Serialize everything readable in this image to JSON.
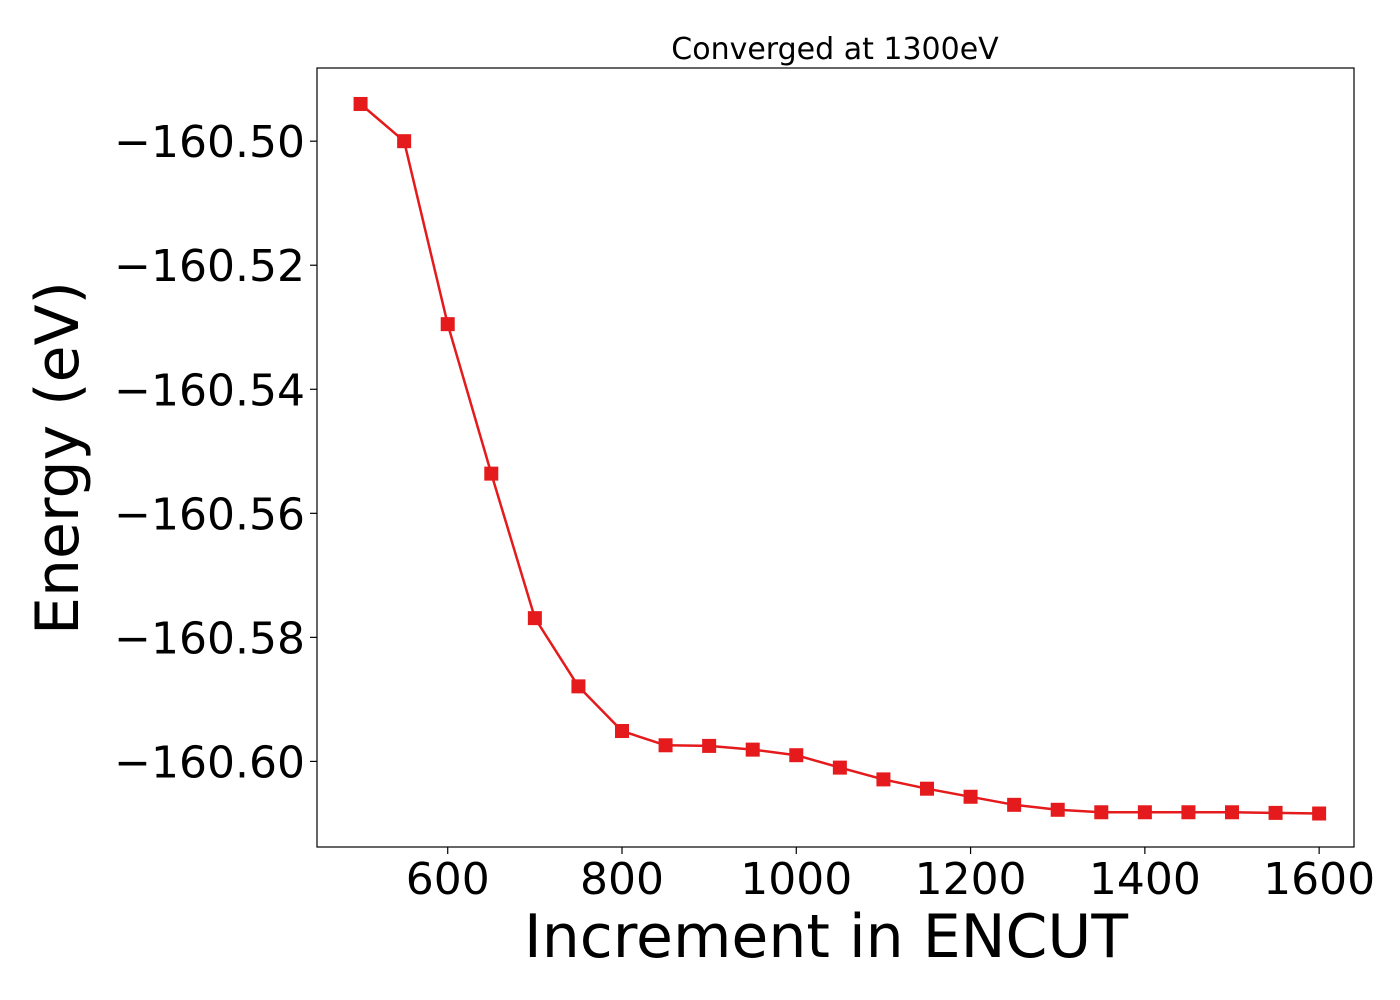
{
  "chart_data": {
    "type": "line",
    "title": "Converged at 1300eV",
    "xlabel": "Increment in ENCUT",
    "ylabel": "Energy (eV)",
    "xlim": [
      450,
      1640
    ],
    "ylim": [
      -160.6138,
      -160.4882
    ],
    "xticks": [
      600,
      800,
      1000,
      1200,
      1400,
      1600
    ],
    "xtick_labels": [
      "600",
      "800",
      "1000",
      "1200",
      "1400",
      "1600"
    ],
    "yticks": [
      -160.5,
      -160.52,
      -160.54,
      -160.56,
      -160.58,
      -160.6
    ],
    "ytick_labels": [
      "−160.50",
      "−160.52",
      "−160.54",
      "−160.56",
      "−160.58",
      "−160.60"
    ],
    "grid": false,
    "series": [
      {
        "color": "#e41a1c",
        "marker": "square",
        "x": [
          500,
          550,
          600,
          650,
          700,
          750,
          800,
          850,
          900,
          950,
          1000,
          1050,
          1100,
          1150,
          1200,
          1250,
          1300,
          1350,
          1400,
          1450,
          1500,
          1550,
          1600
        ],
        "y": [
          -160.494,
          -160.5,
          -160.5295,
          -160.5536,
          -160.5769,
          -160.5879,
          -160.5951,
          -160.5974,
          -160.5975,
          -160.5981,
          -160.599,
          -160.601,
          -160.6029,
          -160.6044,
          -160.6057,
          -160.607,
          -160.6078,
          -160.6082,
          -160.6082,
          -160.6082,
          -160.6082,
          -160.6083,
          -160.6084
        ]
      }
    ]
  }
}
